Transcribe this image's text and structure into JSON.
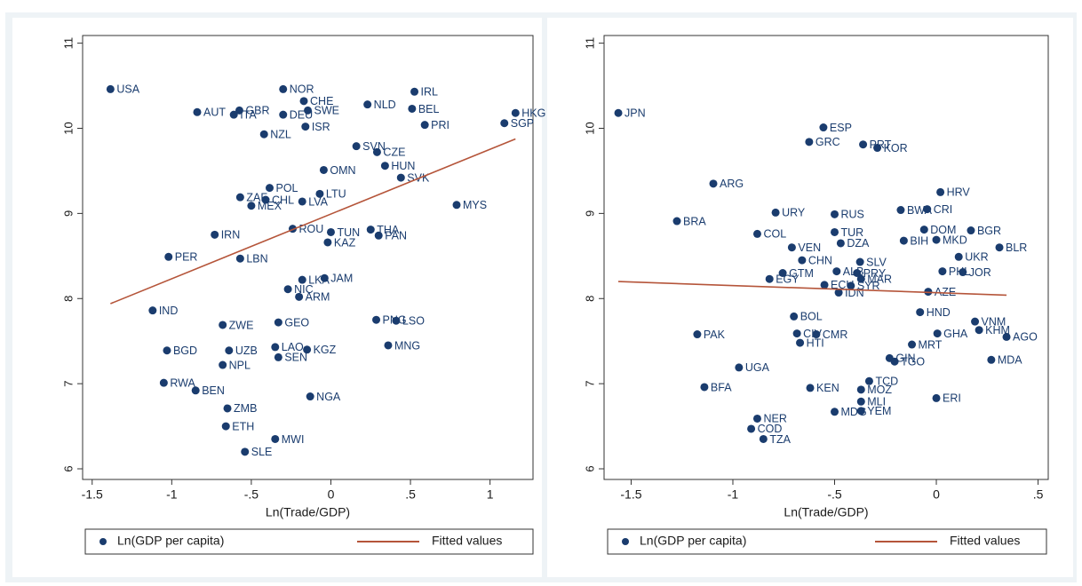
{
  "chart_data": [
    {
      "type": "scatter",
      "xlabel": "Ln(Trade/GDP)",
      "xlim": [
        -1.56,
        1.27
      ],
      "ylim": [
        5.875,
        11.09
      ],
      "xticks": [
        {
          "value": -1.5,
          "label": "-1.5"
        },
        {
          "value": -1,
          "label": "-1"
        },
        {
          "value": -0.5,
          "label": "-.5"
        },
        0,
        {
          "value": 0.5,
          "label": ".5"
        },
        1
      ],
      "yticks": [
        6,
        7,
        8,
        9,
        10,
        11
      ],
      "series": [
        {
          "name": "Ln(GDP per capita)",
          "color": "#1a3c6e",
          "labels": [
            "USA",
            "NOR",
            "IRL",
            "CHE",
            "AUT",
            "GBR",
            "ITA",
            "BEL",
            "NLD",
            "SWE",
            "DEU",
            "HKG",
            "SGP",
            "PRI",
            "ISR",
            "NZL",
            "SVN",
            "CZE",
            "HUN",
            "OMN",
            "SVK",
            "POL",
            "LTU",
            "ZAF",
            "CHL",
            "MEX",
            "LVA",
            "MYS",
            "ROU",
            "TUN",
            "THA",
            "PAN",
            "KAZ",
            "IRN",
            "PER",
            "LBN",
            "JAM",
            "LKA",
            "NIC",
            "ARM",
            "IND",
            "ZWE",
            "GEO",
            "PNG",
            "LSO",
            "BGD",
            "LAO",
            "UZB",
            "KGZ",
            "SEN",
            "MNG",
            "NPL",
            "RWA",
            "BEN",
            "NGA",
            "ZMB",
            "ETH",
            "MWI",
            "SLE"
          ],
          "x": [
            -1.385,
            -0.3,
            0.525,
            -0.17,
            -0.84,
            -0.575,
            -0.61,
            0.51,
            0.23,
            -0.145,
            -0.3,
            1.16,
            1.09,
            0.59,
            -0.16,
            -0.42,
            0.16,
            0.29,
            0.34,
            -0.045,
            0.44,
            -0.385,
            -0.07,
            -0.57,
            -0.41,
            -0.5,
            -0.18,
            0.79,
            -0.24,
            0,
            0.25,
            0.3,
            -0.02,
            -0.73,
            -1.02,
            -0.57,
            -0.04,
            -0.18,
            -0.27,
            -0.2,
            -1.12,
            -0.68,
            -0.33,
            0.285,
            0.41,
            -1.03,
            -0.35,
            -0.64,
            -0.15,
            -0.33,
            0.36,
            -0.68,
            -1.05,
            -0.85,
            -0.13,
            -0.65,
            -0.66,
            -0.35,
            -0.54
          ],
          "values": [
            10.46,
            10.46,
            10.43,
            10.32,
            10.19,
            10.21,
            10.16,
            10.23,
            10.28,
            10.21,
            10.16,
            10.18,
            10.06,
            10.04,
            10.02,
            9.93,
            9.79,
            9.72,
            9.56,
            9.51,
            9.42,
            9.3,
            9.23,
            9.19,
            9.16,
            9.09,
            9.14,
            9.1,
            8.82,
            8.78,
            8.81,
            8.74,
            8.66,
            8.75,
            8.49,
            8.47,
            8.24,
            8.22,
            8.11,
            8.02,
            7.86,
            7.69,
            7.72,
            7.75,
            7.74,
            7.39,
            7.43,
            7.39,
            7.4,
            7.31,
            7.45,
            7.22,
            7.01,
            6.92,
            6.85,
            6.71,
            6.5,
            6.35,
            6.2
          ]
        },
        {
          "name": "Fitted values",
          "color": "#b5553a",
          "x": [
            -1.385,
            1.16
          ],
          "values": [
            7.94,
            9.875
          ]
        }
      ]
    },
    {
      "type": "scatter",
      "xlabel": "Ln(Trade/GDP)",
      "xlim": [
        -1.633,
        0.55
      ],
      "ylim": [
        5.875,
        11.09
      ],
      "xticks": [
        {
          "value": -1.5,
          "label": "-1.5"
        },
        {
          "value": -1,
          "label": "-1"
        },
        {
          "value": -0.5,
          "label": "-.5"
        },
        0,
        {
          "value": 0.5,
          "label": ".5"
        }
      ],
      "yticks": [
        6,
        7,
        8,
        9,
        10,
        11
      ],
      "series": [
        {
          "name": "Ln(GDP per capita)",
          "color": "#1a3c6e",
          "labels": [
            "JPN",
            "ESP",
            "GRC",
            "PRT",
            "KOR",
            "ARG",
            "HRV",
            "BRA",
            "URY",
            "RUS",
            "BWA",
            "CRI",
            "COL",
            "TUR",
            "DOM",
            "BGR",
            "DZA",
            "BIH",
            "MKD",
            "VEN",
            "BLR",
            "UKR",
            "CHN",
            "SLV",
            "ALB",
            "PRY",
            "PHL",
            "JOR",
            "GTM",
            "MAR",
            "ECU",
            "EGY",
            "SYR",
            "IDN",
            "AZE",
            "HND",
            "BOL",
            "VNM",
            "KHM",
            "PAK",
            "CIV",
            "CMR",
            "GHA",
            "AGO",
            "HTI",
            "MRT",
            "UGA",
            "GIN",
            "TGO",
            "MDA",
            "TCD",
            "BFA",
            "KEN",
            "MOZ",
            "MLI",
            "ERI",
            "MDG",
            "YEM",
            "NER",
            "COD",
            "TZA"
          ],
          "x": [
            -1.563,
            -0.555,
            -0.625,
            -0.36,
            -0.29,
            -1.096,
            0.02,
            -1.275,
            -0.79,
            -0.5,
            -0.175,
            -0.045,
            -0.88,
            -0.5,
            -0.06,
            0.17,
            -0.47,
            -0.16,
            0,
            -0.71,
            0.31,
            0.11,
            -0.66,
            -0.375,
            -0.49,
            -0.39,
            0.03,
            0.13,
            -0.755,
            -0.37,
            -0.55,
            -0.82,
            -0.42,
            -0.48,
            -0.04,
            -0.08,
            -0.7,
            0.19,
            0.21,
            -1.175,
            -0.685,
            -0.59,
            0.005,
            0.345,
            -0.67,
            -0.12,
            -0.97,
            -0.23,
            -0.205,
            0.27,
            -0.33,
            -1.14,
            -0.62,
            -0.37,
            -0.37,
            0,
            -0.5,
            -0.37,
            -0.88,
            -0.91,
            -0.85
          ],
          "values": [
            10.18,
            10.01,
            9.84,
            9.81,
            9.77,
            9.35,
            9.25,
            8.91,
            9.01,
            8.99,
            9.04,
            9.05,
            8.76,
            8.78,
            8.81,
            8.8,
            8.65,
            8.68,
            8.69,
            8.6,
            8.6,
            8.49,
            8.45,
            8.43,
            8.32,
            8.3,
            8.32,
            8.31,
            8.3,
            8.23,
            8.16,
            8.23,
            8.15,
            8.07,
            8.08,
            7.84,
            7.79,
            7.73,
            7.63,
            7.58,
            7.59,
            7.58,
            7.59,
            7.55,
            7.48,
            7.46,
            7.19,
            7.3,
            7.26,
            7.28,
            7.03,
            6.96,
            6.95,
            6.93,
            6.79,
            6.83,
            6.67,
            6.68,
            6.59,
            6.47,
            6.35
          ]
        },
        {
          "name": "Fitted values",
          "color": "#b5553a",
          "x": [
            -1.563,
            0.345
          ],
          "values": [
            8.2,
            8.04
          ]
        }
      ]
    }
  ]
}
